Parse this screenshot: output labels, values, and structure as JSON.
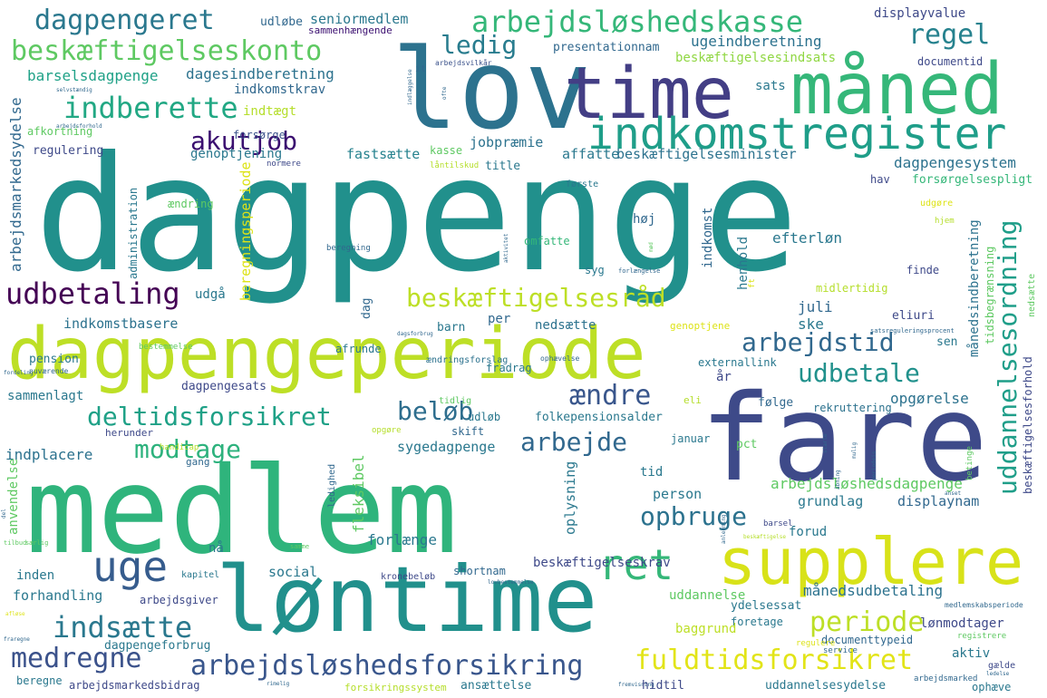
{
  "colors": {
    "background": "#ffffff",
    "purple": "#3b0f70",
    "indigo": "#433e85",
    "blue": "#31688e",
    "teal": "#21908c",
    "green": "#35b779",
    "lime": "#90d743",
    "yellow": "#dde318"
  },
  "words": {
    "dagpenge": "dagpenge",
    "medlem": "medlem",
    "fare": "fare",
    "lov": "lov",
    "loentime": "løntime",
    "dagpengeperiode": "dagpengeperiode",
    "time": "time",
    "maaned": "måned",
    "supplere": "supplere",
    "indkomstregister": "indkomstregister",
    "arbejdsloeshedskasse": "arbejdsløshedskasse",
    "dagpengeret": "dagpengeret",
    "beskaeftigelseskonto": "beskæftigelseskonto",
    "indberette": "indberette",
    "ledig": "ledig",
    "regel": "regel",
    "akutjob": "akutjob",
    "udbetaling": "udbetaling",
    "beskaeftigelsesraad": "beskæftigelsesråd",
    "arbejdstid": "arbejdstid",
    "udbetale": "udbetale",
    "aendre": "ændre",
    "deltidsforsikret": "deltidsforsikret",
    "beloeb": "beløb",
    "modtage": "modtage",
    "arbejde": "arbejde",
    "uge": "uge",
    "opbruge": "opbruge",
    "ret": "ret",
    "indsaette": "indsætte",
    "medregne": "medregne",
    "arbejdsloeshedsforsikring": "arbejdsløshedsforsikring",
    "periode": "periode",
    "fuldtidsforsikret": "fuldtidsforsikret",
    "uddannelsesordning": "uddannelsesordning",
    "seniormedlem": "seniormedlem",
    "udloebe": "udløbe",
    "displayvalue": "displayvalue",
    "opnaa": "opnå",
    "sammenhaengende": "sammenhængende",
    "ugeindberetning": "ugeindberetning",
    "presentationnam": "presentationnam",
    "beskaeftigelsesindsats": "beskæftigelsesindsats",
    "documentid": "documentid",
    "barselsdagpenge": "barselsdagpenge",
    "dagesindberetning": "dagesindberetning",
    "indkomstkrav": "indkomstkrav",
    "sats": "sats",
    "indtaegt": "indtægt",
    "forsoerge": "forsørge",
    "kasse": "kasse",
    "afkortning": "afkortning",
    "regulering": "regulering",
    "genoptjening": "genoptjening",
    "fastsaette": "fastsætte",
    "jobpraemie": "jobpræmie",
    "affatte": "affatte",
    "beskaeftigelsesminister": "beskæftigelsesminister",
    "dagpengesystem": "dagpengesystem",
    "normere": "normere",
    "laentilskud": "låntilskud",
    "title": "title",
    "foerste": "første",
    "hav": "hav",
    "forsoergelsespligt": "forsørgelsespligt",
    "aendring": "ændring",
    "hoej": "høj",
    "efterloen": "efterløn",
    "omfatte": "omfatte",
    "udgaa": "udgå",
    "juli": "juli",
    "ske": "ske",
    "midlertidig": "midlertidig",
    "finde": "finde",
    "indkomstbasere": "indkomstbasere",
    "barn": "barn",
    "per": "per",
    "nedsaette": "nedsætte",
    "eliuri": "eliuri",
    "sen": "sen",
    "genoptjene": "genoptjene",
    "afrunde": "afrunde",
    "bestemmelse": "bestemmelse",
    "maanedsindberetning": "månedsindberetning",
    "tidsbegraensning": "tidsbegrænsning",
    "externallink": "externallink",
    "aar": "år",
    "pension": "pension",
    "aendringsforslag": "ændringsforslag",
    "fradrag": "fradrag",
    "ophaevelse": "ophævelse",
    "dagpengesats": "dagpengesats",
    "sammenlagt": "sammenlagt",
    "nuvaerende": "nuværende",
    "eli": "eli",
    "foelge": "følge",
    "rekruttering": "rekruttering",
    "opgoerelse": "opgørelse",
    "udloeb": "udløb",
    "folkepensionsalder": "folkepensionsalder",
    "herunder": "herunder",
    "skift": "skift",
    "tidlig": "tidlig",
    "opgore": "opgøre",
    "indplacere": "indplacere",
    "sygedagpenge": "sygedagpenge",
    "januar": "januar",
    "pct": "pct",
    "tid": "tid",
    "handicap": "handicap",
    "gang": "gang",
    "person": "person",
    "arbejdsloeshedsdagpenge": "arbejdsløshedsdagpenge",
    "grundlag": "grundlag",
    "displaynam": "displaynam",
    "forud": "forud",
    "forlaenge": "forlænge",
    "naa": "nå",
    "inden": "inden",
    "social": "social",
    "shortnam": "shortnam",
    "beskaeftigelseskrav": "beskæftigelseskrav",
    "kapitel": "kapitel",
    "forhandling": "forhandling",
    "arbejdsgiver": "arbejdsgiver",
    "kronebeloeb": "kronebeløb",
    "uddannelse": "uddannelse",
    "ydelsessat": "ydelsessat",
    "maanedsudbetaling": "månedsudbetaling",
    "medlemskabsperiode": "medlemskabsperiode",
    "dagpengeforbrug": "dagpengeforbrug",
    "foretage": "foretage",
    "loenmodtager": "lønmodtager",
    "baggrund": "baggrund",
    "documenttypeid": "documenttypeid",
    "regulere": "regulere",
    "registrere": "registrere",
    "aktiv": "aktiv",
    "gaelde": "gælde",
    "service": "service",
    "beregne": "beregne",
    "arbejdsmarkedsbidrag": "arbejdsmarkedsbidrag",
    "forsikringssystem": "forsikringssystem",
    "ansaettelse": "ansættelse",
    "hidtil": "hidtil",
    "uddannelsesydelse": "uddannelsesydelse",
    "arbejdsmarked": "arbejdsmarked",
    "ophaeve": "ophæve",
    "arbejdsmarkedsydelse": "arbejdsmarkedsydelse",
    "beregningsperiode": "beregningsperiode",
    "administration": "administration",
    "indkomst": "indkomst",
    "henhold": "henhold",
    "dag": "dag",
    "anvendelse": "anvendelse",
    "ledighed": "ledighed",
    "fleksibel": "fleksibel",
    "oplysning": "oplysning",
    "beskaeftigelsesforhold": "beskæftigelsesforhold",
    "betinge": "betinge",
    "beregning": "beregning",
    "it": "it",
    "arbejdsvilkaar": "arbejdsvilkår",
    "selvstaendig": "selvstændig",
    "arbejdsforhold": "arbejdsforhold",
    "indberetning": "indberetning",
    "udgoere": "udgøre",
    "hjem": "hjem",
    "syg": "syg",
    "forlaengelse": "forlængelse",
    "barsel": "barsel",
    "beskaeftigelse": "beskæftigelse",
    "satsreguleringsprocent": "satsreguleringsprocent",
    "dagsforbrug": "dagsforbrug",
    "fordeling": "fordeling",
    "saerlig": "særlig",
    "tilbud": "tilbud",
    "anset": "anset",
    "aktivitet": "aktivitet",
    "indlaeggelse": "indlæggelse",
    "lovbestemmelse": "lovbestemmelse",
    "afloese": "afløse",
    "fremvisning": "fremvisning",
    "fraregne": "fraregne",
    "ledelse": "ledelse",
    "rimelig": "rimelig",
    "samme": "samme",
    "forhold": "forhold",
    "del": "del",
    "ft": "ft",
    "ofte": "ofte",
    "moed": "mød",
    "aabning": "åbning",
    "periodeis": "periodeis",
    "mulig": "mulig",
    "anledning": "anledning",
    "starte": "starte"
  }
}
